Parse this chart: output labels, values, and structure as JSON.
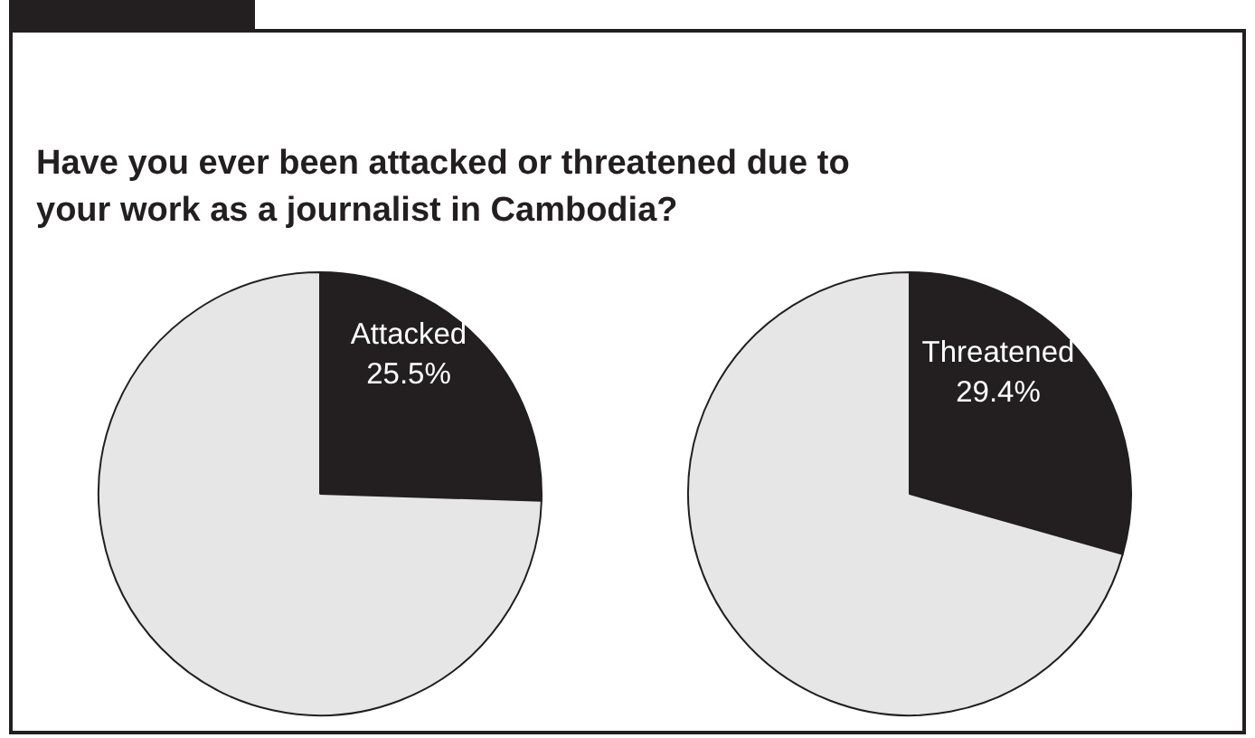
{
  "chart_data": [
    {
      "type": "pie",
      "title": "Have you ever been attacked or threatened due to your work as a journalist in Cambodia?",
      "categories": [
        "Attacked",
        null
      ],
      "values": [
        25.5,
        74.5
      ],
      "colors": [
        "#231f20",
        "#e6e6e6"
      ],
      "value_labels": [
        "25.5%",
        null
      ],
      "legend": false
    },
    {
      "type": "pie",
      "categories": [
        "Threatened",
        null
      ],
      "values": [
        29.4,
        70.6
      ],
      "colors": [
        "#231f20",
        "#e6e6e6"
      ],
      "value_labels": [
        "29.4%",
        null
      ],
      "legend": false
    }
  ]
}
